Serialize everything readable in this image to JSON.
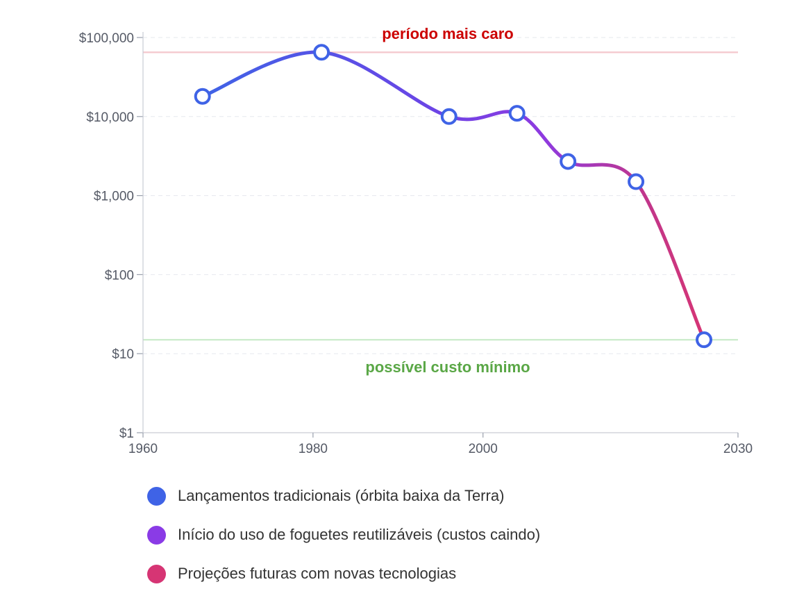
{
  "chart_data": {
    "type": "line",
    "scale_y": "log",
    "x_ticks": [
      "1960",
      "1980",
      "2000",
      "2030"
    ],
    "y_ticks": [
      "$1",
      "$10",
      "$100",
      "$1,000",
      "$10,000",
      "$100,000"
    ],
    "xlim": [
      1960,
      2030
    ],
    "ylim": [
      1,
      100000
    ],
    "grid": "horizontal dashed",
    "series": [
      {
        "name": "Lançamentos tradicionais (órbita baixa da Terra)",
        "color": "#3f63e6",
        "points": [
          {
            "x": 1967,
            "y": 18000
          },
          {
            "x": 1981,
            "y": 65000
          },
          {
            "x": 1996,
            "y": 10000
          },
          {
            "x": 2004,
            "y": 11000
          }
        ]
      },
      {
        "name": "Início do uso de foguetes reutilizáveis (custos caindo)",
        "color": "#8a3be6",
        "points": [
          {
            "x": 2010,
            "y": 2700
          },
          {
            "x": 2018,
            "y": 1500
          }
        ]
      },
      {
        "name": "Projeções futuras com novas tecnologias",
        "color": "#d63574",
        "points": [
          {
            "x": 2026,
            "y": 15
          }
        ]
      }
    ],
    "reference_lines": [
      {
        "y": 65000,
        "label": "período mais caro",
        "color": "#f5c9cf",
        "label_color": "#cc0000"
      },
      {
        "y": 15,
        "label": "possível custo mínimo",
        "color": "#cdeccd",
        "label_color": "#5aa746"
      }
    ],
    "legend_position": "bottom"
  }
}
